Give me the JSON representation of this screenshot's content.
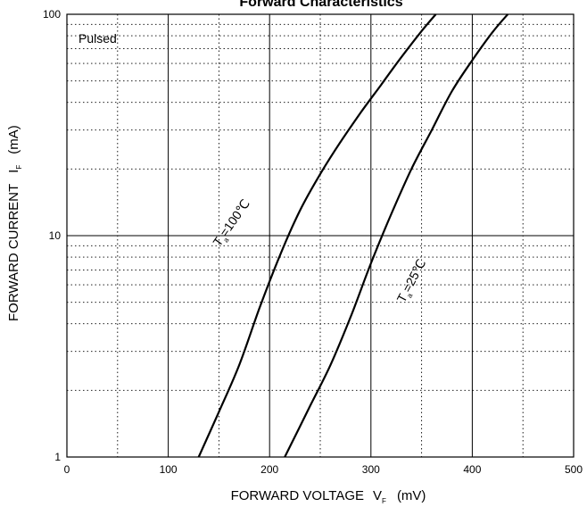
{
  "chart_data": {
    "type": "line",
    "title": "Forward    Characteristics",
    "xlabel": "FORWARD VOLTAGE",
    "xlabel_symbol": "V",
    "xlabel_subscript": "F",
    "xlabel_unit": "(mV)",
    "ylabel": "FORWARD CURRENT",
    "ylabel_symbol": "I",
    "ylabel_subscript": "F",
    "ylabel_unit": "(mA)",
    "xlim": [
      0,
      500
    ],
    "ylim": [
      1,
      100
    ],
    "yscale": "log",
    "x_ticks": [
      "0",
      "100",
      "200",
      "300",
      "400",
      "500"
    ],
    "y_ticks": [
      "1",
      "10",
      "100"
    ],
    "grid": true,
    "annotation": "Pulsed",
    "series": [
      {
        "name": "Ta=100°C",
        "label_symbol": "T",
        "label_subscript": "a",
        "label_value": "=100℃",
        "x": [
          130,
          150,
          170,
          190,
          210,
          230,
          250,
          270,
          290,
          310,
          330,
          350,
          364
        ],
        "y": [
          1.0,
          1.6,
          2.6,
          4.7,
          8.1,
          13,
          19,
          26.5,
          36,
          48,
          64,
          84,
          100
        ]
      },
      {
        "name": "Ta=25°C",
        "label_symbol": "T",
        "label_subscript": "a",
        "label_value": "=25℃",
        "x": [
          215,
          240,
          260,
          280,
          300,
          320,
          340,
          360,
          380,
          400,
          420,
          435
        ],
        "y": [
          1.0,
          1.7,
          2.6,
          4.3,
          7.5,
          12.5,
          20,
          30,
          45,
          62,
          83,
          100
        ]
      }
    ]
  }
}
